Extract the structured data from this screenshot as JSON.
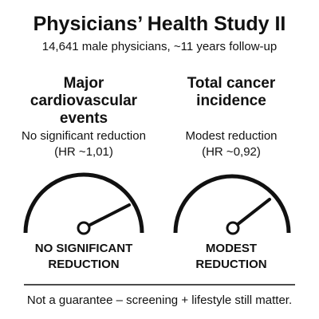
{
  "header": {
    "title": "Physicians’ Health Study II",
    "subtitle": "14,641 male physicians, ~11 years follow-up"
  },
  "panels": [
    {
      "heading": "Major cardiovascular events",
      "result": "No significant reduction",
      "hr": "(HR ~1,01)",
      "verdict": "NO SIGNIFICANT REDUCTION"
    },
    {
      "heading": "Total cancer incidence",
      "result": "Modest reduction",
      "hr": "(HR ~0,92)",
      "verdict": "MODEST REDUCTION"
    }
  ],
  "footer": "Not a guarantee – screening + lifestyle still matter."
}
